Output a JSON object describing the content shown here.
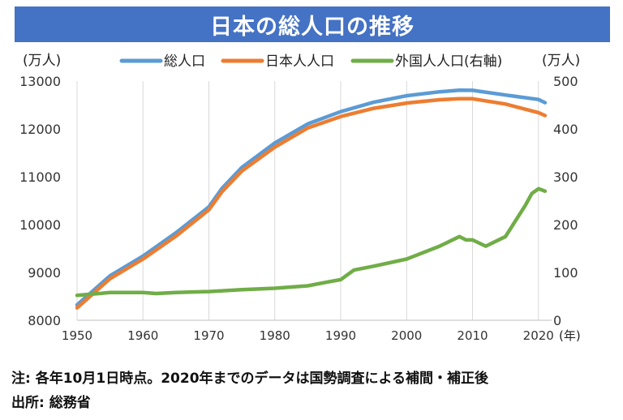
{
  "header": {
    "title": "日本の総人口の推移"
  },
  "notes": {
    "note": "注: 各年10月1日時点。2020年までのデータは国勢調査による補間・補正後",
    "source": "出所: 総務省"
  },
  "colors": {
    "total": "#5b9bd5",
    "japanese": "#ed7d31",
    "foreign": "#70ad47",
    "title_bg": "#4472c4",
    "grid": "#d9d9d9"
  },
  "chart_data": {
    "type": "line",
    "title": "日本の総人口の推移",
    "xlabel": "(年)",
    "ylabel_left": "(万人)",
    "ylabel_right": "(万人)",
    "xlim": [
      1950,
      2022
    ],
    "ylim_left": [
      8000,
      13000
    ],
    "ylim_right": [
      0,
      500
    ],
    "x_ticks": [
      1950,
      1960,
      1970,
      1980,
      1990,
      2000,
      2010,
      2020
    ],
    "x_tick_labels": [
      "1950",
      "1960",
      "1970",
      "1980",
      "1990",
      "2000",
      "2010",
      "2020"
    ],
    "y_left_ticks": [
      8000,
      9000,
      10000,
      11000,
      12000,
      13000
    ],
    "y_left_tick_labels": [
      "8000",
      "9000",
      "10000",
      "11000",
      "12000",
      "13000"
    ],
    "y_right_ticks": [
      0,
      100,
      200,
      300,
      400,
      500
    ],
    "y_right_tick_labels": [
      "0",
      "100",
      "200",
      "300",
      "400",
      "500"
    ],
    "grid": "vertical",
    "legend_position": "top",
    "series": [
      {
        "name": "総人口",
        "axis": "left",
        "x": [
          1950,
          1955,
          1960,
          1965,
          1970,
          1972,
          1975,
          1980,
          1985,
          1990,
          1995,
          2000,
          2005,
          2008,
          2010,
          2015,
          2020,
          2021
        ],
        "values": [
          8320,
          8928,
          9342,
          9828,
          10372,
          10760,
          11194,
          11706,
          12105,
          12361,
          12557,
          12693,
          12777,
          12808,
          12806,
          12709,
          12615,
          12550
        ]
      },
      {
        "name": "日本人人口",
        "axis": "left",
        "x": [
          1950,
          1955,
          1960,
          1965,
          1970,
          1972,
          1975,
          1980,
          1985,
          1990,
          1995,
          2000,
          2005,
          2008,
          2010,
          2015,
          2020,
          2021
        ],
        "values": [
          8260,
          8870,
          9280,
          9760,
          10310,
          10690,
          11120,
          11620,
          12020,
          12260,
          12430,
          12540,
          12610,
          12630,
          12630,
          12520,
          12340,
          12280
        ]
      },
      {
        "name": "外国人人口(右軸)",
        "axis": "right",
        "x": [
          1950,
          1955,
          1960,
          1962,
          1965,
          1970,
          1975,
          1980,
          1985,
          1988,
          1990,
          1992,
          1995,
          2000,
          2005,
          2008,
          2009,
          2010,
          2012,
          2015,
          2018,
          2019,
          2020,
          2021
        ],
        "values": [
          52,
          58,
          58,
          56,
          58,
          60,
          64,
          67,
          72,
          80,
          85,
          105,
          113,
          128,
          155,
          175,
          168,
          168,
          155,
          175,
          240,
          265,
          275,
          270
        ]
      }
    ]
  }
}
